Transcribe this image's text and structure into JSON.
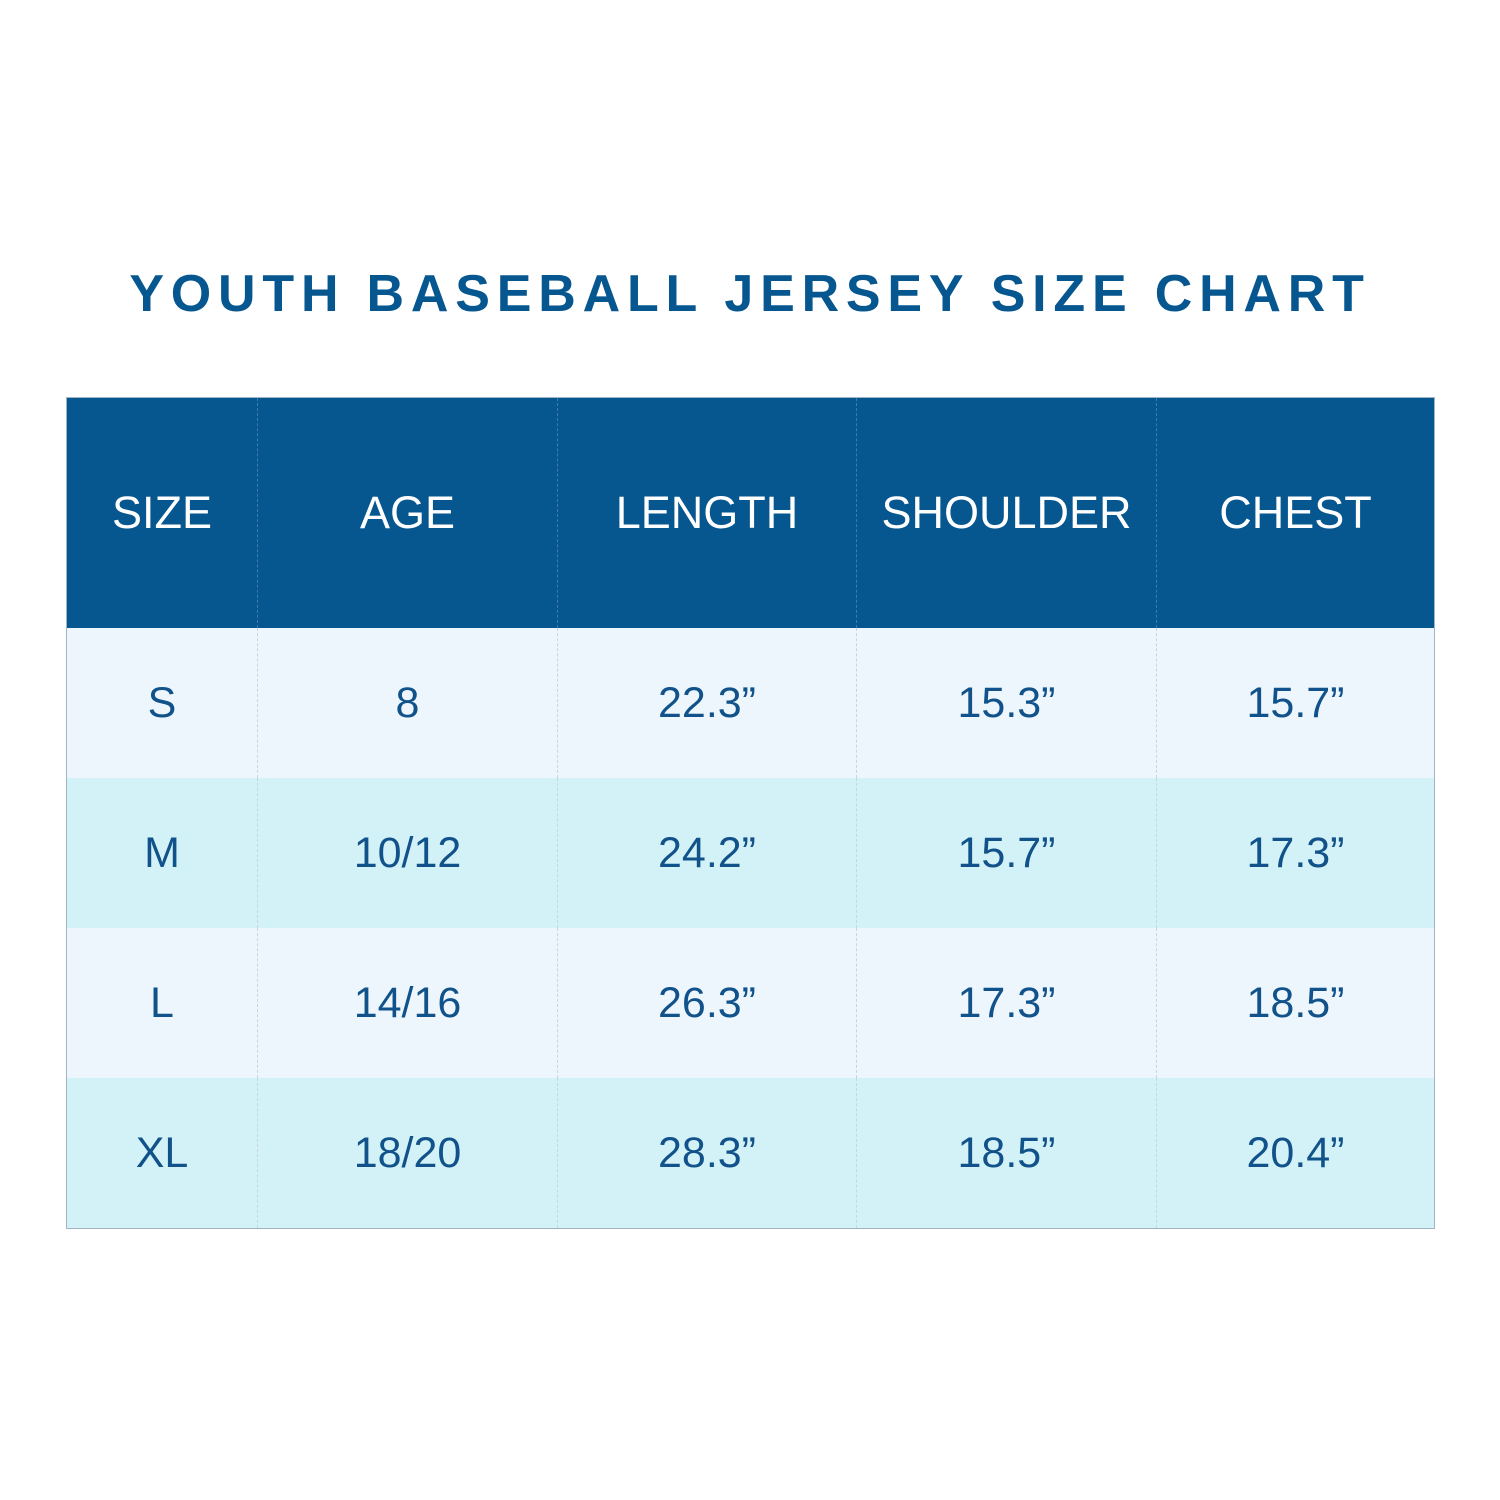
{
  "title": "YOUTH BASEBALL JERSEY SIZE CHART",
  "colors": {
    "header_bg": "#06568f",
    "title_text": "#06568f",
    "cell_text": "#11528a",
    "row_light": "#ecf6fc",
    "row_tint": "#d3f2f8"
  },
  "table": {
    "headers": [
      "SIZE",
      "AGE",
      "LENGTH",
      "SHOULDER",
      "CHEST"
    ],
    "rows": [
      [
        "S",
        "8",
        "22.3”",
        "15.3”",
        "15.7”"
      ],
      [
        "M",
        "10/12",
        "24.2”",
        "15.7”",
        "17.3”"
      ],
      [
        "L",
        "14/16",
        "26.3”",
        "17.3”",
        "18.5”"
      ],
      [
        "XL",
        "18/20",
        "28.3”",
        "18.5”",
        "20.4”"
      ]
    ]
  }
}
